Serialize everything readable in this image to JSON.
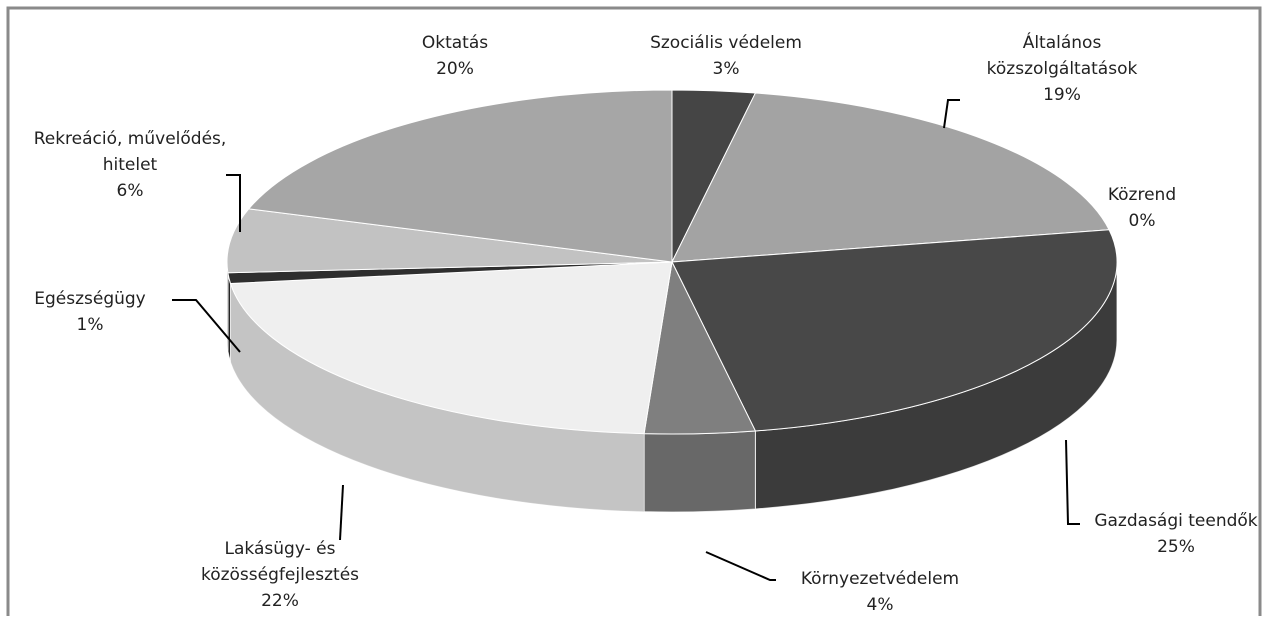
{
  "chart_data": {
    "type": "pie",
    "categories": [
      "Szociális védelem",
      "Általános közszolgáltatások",
      "Közrend",
      "Gazdasági teendők",
      "Környezetvédelem",
      "Lakásügy- és közösségfejlesztés",
      "Egészségügy",
      "Rekreáció, művelődés, hitelet",
      "Oktatás"
    ],
    "values": [
      3,
      19,
      0,
      25,
      4,
      22,
      1,
      6,
      20
    ],
    "value_labels": [
      "3%",
      "19%",
      "0%",
      "25%",
      "4%",
      "22%",
      "1%",
      "6%",
      "20%"
    ],
    "colors": [
      "#454545",
      "#a3a3a3",
      "#303030",
      "#484848",
      "#7f7f7f",
      "#efefef",
      "#2e2e2e",
      "#c2c2c2",
      "#a6a6a6"
    ]
  }
}
